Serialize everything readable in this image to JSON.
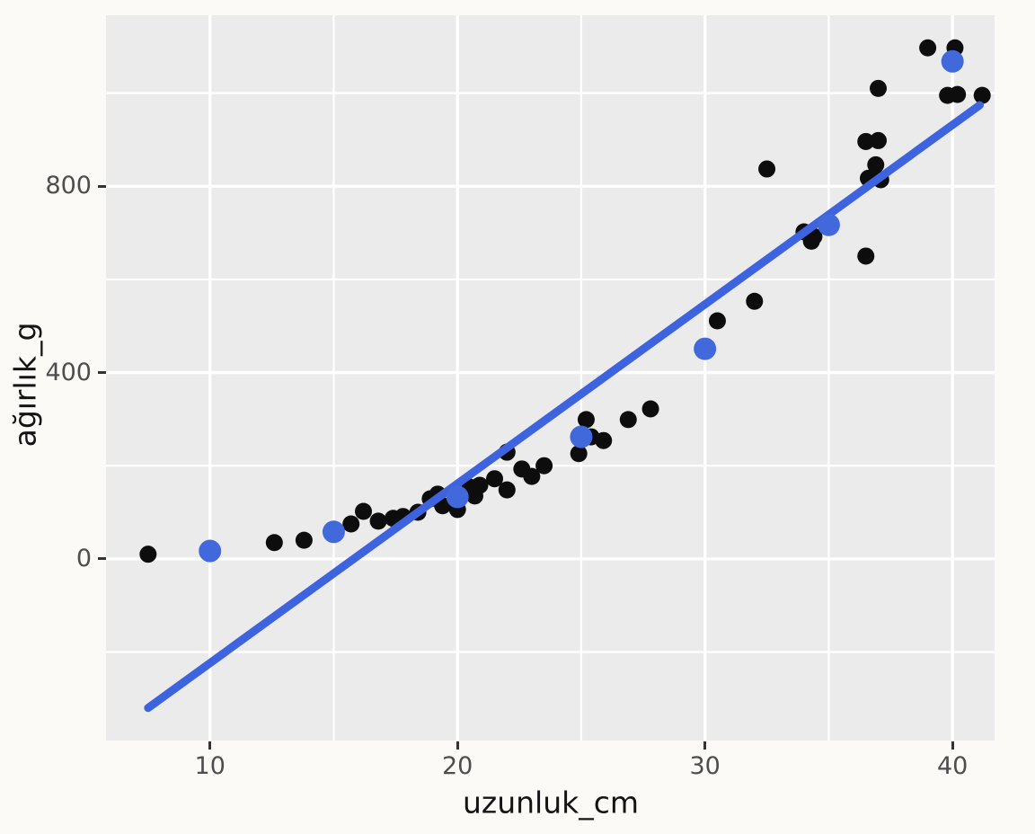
{
  "figure": {
    "background": "#fbfaf6",
    "panel_background": "#ebebeb",
    "gridline_color": "#ffffff",
    "point_color": "#0d0d0d",
    "mean_point_color": "#4169db",
    "line_color": "#3e63de",
    "tick_label_color": "#4d4d4d",
    "axis_title_color": "#141414"
  },
  "chart_data": {
    "type": "scatter",
    "title": "",
    "xlabel": "uzunluk_cm",
    "ylabel": "ağırlık_g",
    "xlim": [
      5.8,
      41.7
    ],
    "ylim": [
      -390,
      1167
    ],
    "x_ticks": [
      10,
      20,
      30,
      40
    ],
    "y_ticks": [
      0,
      400,
      800
    ],
    "x_minor_gridlines": [
      15,
      25,
      35
    ],
    "y_minor_gridlines": [
      -200,
      200,
      600,
      1000
    ],
    "grid": "on",
    "legend": "none",
    "series": [
      {
        "name": "observations",
        "marker": "black-dot",
        "points": [
          [
            7.5,
            10
          ],
          [
            12.6,
            35
          ],
          [
            13.8,
            40
          ],
          [
            15.7,
            75
          ],
          [
            16.2,
            102
          ],
          [
            16.8,
            81
          ],
          [
            17.4,
            87
          ],
          [
            17.8,
            91
          ],
          [
            18.4,
            100
          ],
          [
            18.9,
            129
          ],
          [
            19.2,
            139
          ],
          [
            19.4,
            114
          ],
          [
            20.0,
            106
          ],
          [
            20.5,
            154
          ],
          [
            20.7,
            135
          ],
          [
            20.9,
            158
          ],
          [
            21.5,
            172
          ],
          [
            22.0,
            148
          ],
          [
            22.0,
            229
          ],
          [
            22.6,
            193
          ],
          [
            23.0,
            177
          ],
          [
            23.5,
            200
          ],
          [
            24.9,
            226
          ],
          [
            25.2,
            299
          ],
          [
            25.4,
            262
          ],
          [
            25.9,
            254
          ],
          [
            26.9,
            299
          ],
          [
            27.8,
            322
          ],
          [
            30.5,
            511
          ],
          [
            32.0,
            553
          ],
          [
            32.5,
            837
          ],
          [
            34.0,
            702
          ],
          [
            34.3,
            682
          ],
          [
            34.4,
            692
          ],
          [
            36.5,
            650
          ],
          [
            36.5,
            896
          ],
          [
            36.6,
            817
          ],
          [
            36.9,
            846
          ],
          [
            37.0,
            898
          ],
          [
            37.1,
            814
          ],
          [
            37.0,
            1010
          ],
          [
            39.0,
            1097
          ],
          [
            39.8,
            995
          ],
          [
            40.1,
            1097
          ],
          [
            40.2,
            997
          ],
          [
            41.2,
            995
          ]
        ]
      },
      {
        "name": "group_means",
        "marker": "blue-dot",
        "points": [
          [
            10,
            17
          ],
          [
            15,
            58
          ],
          [
            20,
            133
          ],
          [
            25,
            262
          ],
          [
            30,
            451
          ],
          [
            35,
            717
          ],
          [
            40,
            1068
          ]
        ]
      }
    ],
    "regression_line": {
      "x1": 7.5,
      "y1": -320,
      "x2": 41.1,
      "y2": 974
    }
  }
}
